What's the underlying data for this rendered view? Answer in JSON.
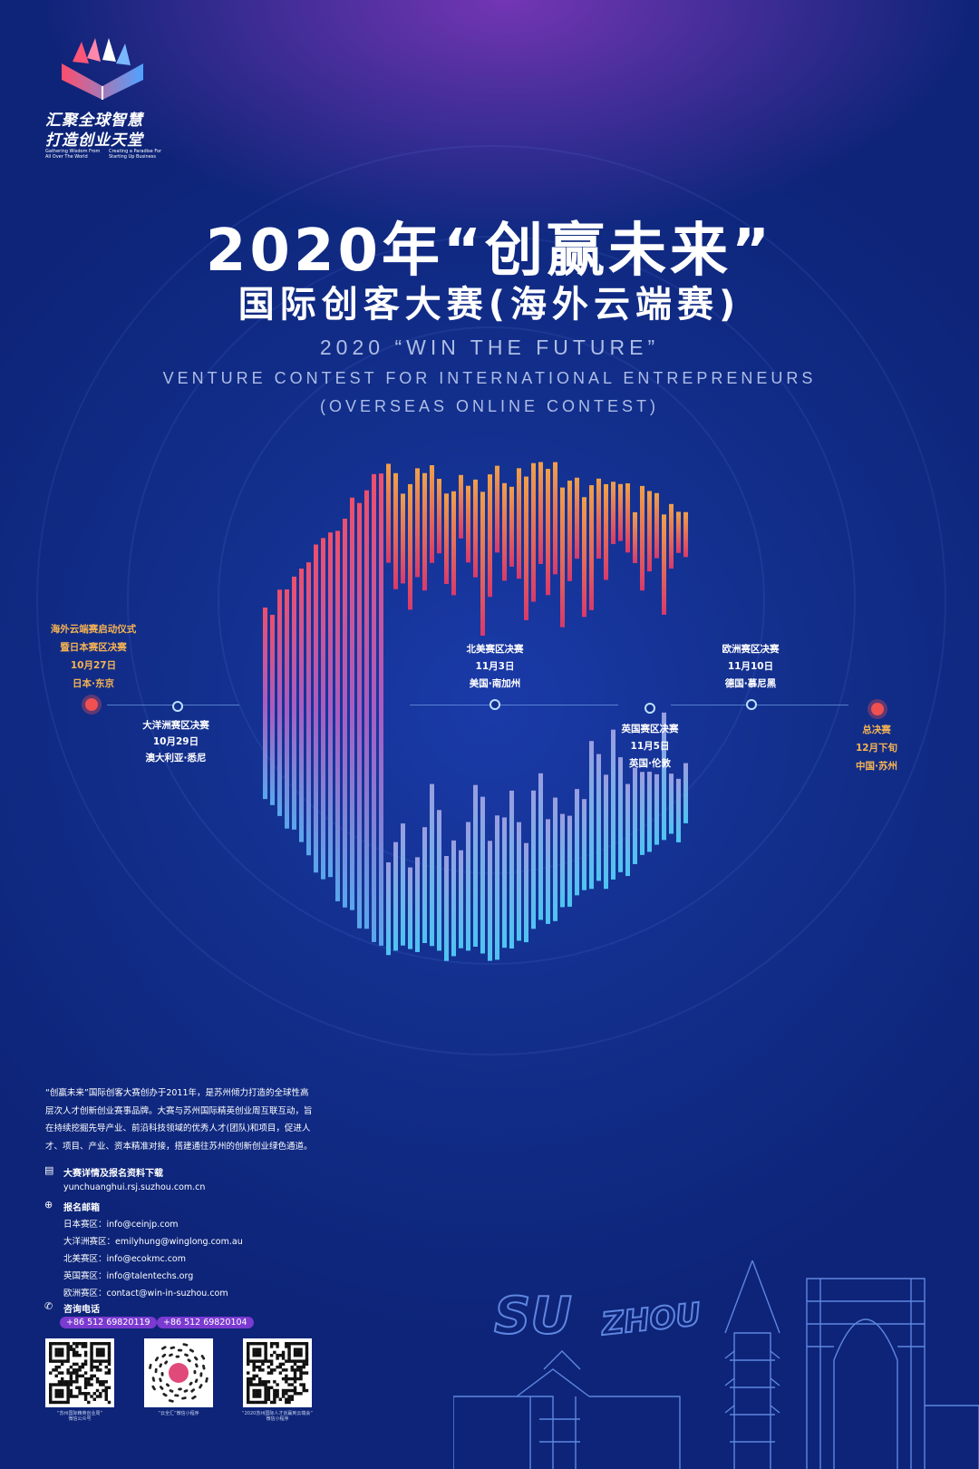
{
  "logo": {
    "slogan_line1": "汇聚全球智慧",
    "slogan_line2": "打造创业天堂",
    "en_left_line1": "Gathering Wisdom From",
    "en_left_line2": "All Over The World",
    "en_right_line1": "Creating a Paradise For",
    "en_right_line2": "Starting Up Business"
  },
  "title": {
    "line1": "2020年“创赢未来”",
    "line2": "国际创客大赛(海外云端赛)",
    "en_line1": "2020 “WIN THE FUTURE”",
    "en_line2": "VENTURE CONTEST FOR INTERNATIONAL ENTREPRENEURS",
    "en_line3": "(OVERSEAS ONLINE CONTEST)"
  },
  "colors": {
    "background": "#13308e",
    "accent_red": "#f0504f",
    "accent_yellow": "#f6b352",
    "phone_badge": "#7b3ad0"
  },
  "timeline": [
    {
      "lines": [
        "海外云端赛启动仪式",
        "暨日本赛区决赛",
        "10月27日",
        "日本·东京"
      ],
      "style": "highlight"
    },
    {
      "lines": [
        "大洋洲赛区决赛",
        "10月29日",
        "澳大利亚·悉尼"
      ],
      "style": "normal"
    },
    {
      "lines": [
        "北美赛区决赛",
        "11月3日",
        "美国·南加州"
      ],
      "style": "normal"
    },
    {
      "lines": [
        "英国赛区决赛",
        "11月5日",
        "英国·伦敦"
      ],
      "style": "normal"
    },
    {
      "lines": [
        "欧洲赛区决赛",
        "11月10日",
        "德国·慕尼黑"
      ],
      "style": "normal"
    },
    {
      "lines": [
        "总决赛",
        "12月下旬",
        "中国·苏州"
      ],
      "style": "highlight"
    }
  ],
  "intro": "“创赢未来”国际创客大赛创办于2011年，是苏州倾力打造的全球性高层次人才创新创业赛事品牌。大赛与苏州国际精英创业周互联互动，旨在持续挖掘先导产业、前沿科技领域的优秀人才(团队)和项目，促进人才、项目、产业、资本精准对接，搭建通往苏州的创新创业绿色通道。",
  "contact": {
    "download_icon": "document-icon",
    "download_title": "大赛详情及报名资料下载",
    "website": "yunchuanghui.rsj.suzhou.com.cn",
    "email_icon": "globe-icon",
    "email_title": "报名邮箱",
    "emails": [
      "日本赛区：info@ceinjp.com",
      "大洋洲赛区：emilyhung@winglong.com.au",
      "北美赛区：info@ecokmc.com",
      "英国赛区：info@talentechs.org",
      "欧洲赛区：contact@win-in-suzhou.com"
    ],
    "phone_icon": "phone-icon",
    "phone_title": "咨询电话",
    "phones": [
      "+86 512 69820119",
      "+86 512 69820104"
    ]
  },
  "qr_codes": [
    {
      "label_line1": "“苏州国际精英创业周”",
      "label_line2": "微信公众号"
    },
    {
      "label_line1": "“云全汇”微信小程序",
      "label_line2": ""
    },
    {
      "label_line1": "“2020苏州国际人才创赢到云端会”",
      "label_line2": "微信小程序"
    }
  ],
  "city": {
    "word1": "SU",
    "word2": "ZHOU"
  }
}
